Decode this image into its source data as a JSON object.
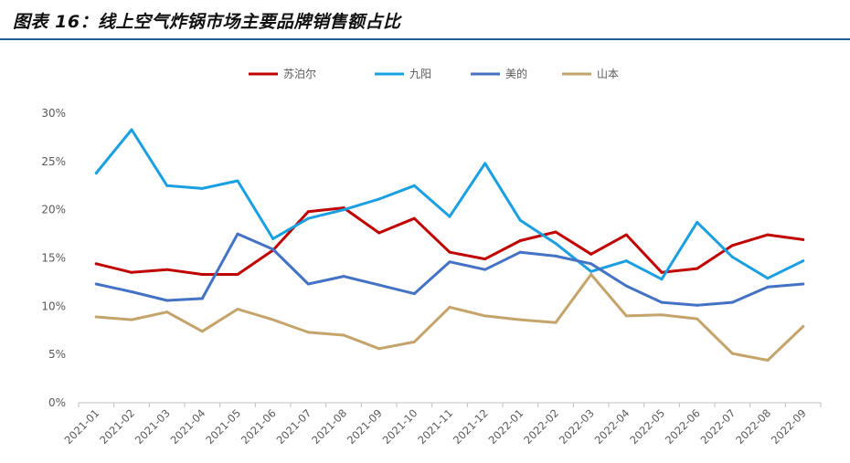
{
  "header": {
    "title": "图表 16：线上空气炸锅市场主要品牌销售额占比"
  },
  "chart_data": {
    "type": "line",
    "title": "",
    "xlabel": "",
    "ylabel": "",
    "ylim": [
      0,
      30
    ],
    "y_ticks": [
      "0%",
      "5%",
      "10%",
      "15%",
      "20%",
      "25%",
      "30%"
    ],
    "y_tick_values": [
      0,
      5,
      10,
      15,
      20,
      25,
      30
    ],
    "grid": false,
    "legend_position": "top",
    "categories": [
      "2021-01",
      "2021-02",
      "2021-03",
      "2021-04",
      "2021-05",
      "2021-06",
      "2021-07",
      "2021-08",
      "2021-09",
      "2021-10",
      "2021-11",
      "2021-12",
      "2022-01",
      "2022-02",
      "2022-03",
      "2022-04",
      "2022-05",
      "2022-06",
      "2022-07",
      "2022-08",
      "2022-09"
    ],
    "series": [
      {
        "name": "苏泊尔",
        "color": "#c00000",
        "values": [
          14.4,
          13.5,
          13.8,
          13.3,
          13.3,
          15.8,
          19.8,
          20.2,
          17.6,
          19.1,
          15.6,
          14.9,
          16.8,
          17.7,
          15.4,
          17.4,
          13.5,
          13.9,
          16.3,
          17.4,
          16.9
        ]
      },
      {
        "name": "九阳",
        "color": "#1a9fe0",
        "values": [
          23.8,
          28.3,
          22.5,
          22.2,
          23.0,
          17.0,
          19.1,
          20.0,
          21.1,
          22.5,
          19.3,
          24.8,
          18.9,
          16.5,
          13.6,
          14.7,
          12.8,
          18.7,
          15.1,
          12.9,
          14.7
        ]
      },
      {
        "name": "美的",
        "color": "#4472c4",
        "values": [
          12.3,
          11.5,
          10.6,
          10.8,
          17.5,
          15.9,
          12.3,
          13.1,
          12.2,
          11.3,
          14.6,
          13.8,
          15.6,
          15.2,
          14.4,
          12.1,
          10.4,
          10.1,
          10.4,
          12.0,
          12.3
        ]
      },
      {
        "name": "山本",
        "color": "#c4a46a",
        "values": [
          8.9,
          8.6,
          9.4,
          7.4,
          9.7,
          8.6,
          7.3,
          7.0,
          5.6,
          6.3,
          9.9,
          9.0,
          8.6,
          8.3,
          13.3,
          9.0,
          9.1,
          8.7,
          5.1,
          4.4,
          7.9
        ]
      }
    ]
  }
}
